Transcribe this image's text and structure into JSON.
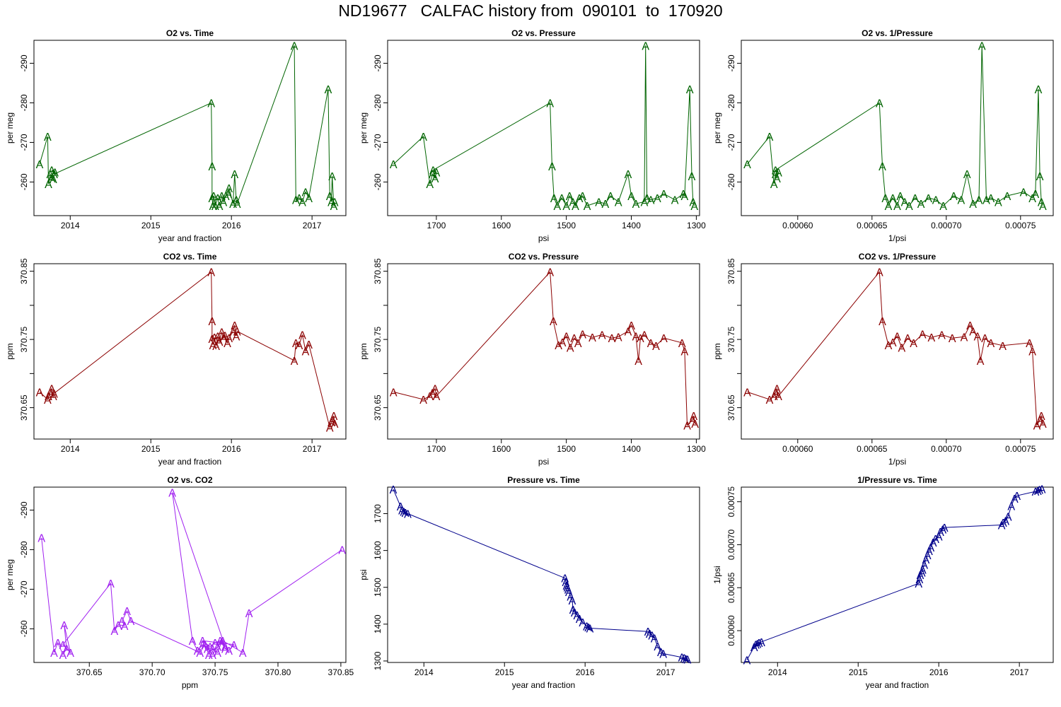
{
  "page_title": "ND19677   CALFAC history from  090101  to  170920",
  "colors": {
    "o2": "#006400",
    "co2": "#8b0000",
    "o2co2": "#a020f0",
    "pressure": "#00008b"
  },
  "chart_data": [
    {
      "type": "line",
      "marker": "A",
      "color": "#006400",
      "title": "O2 vs. Time",
      "xlabel": "year and fraction",
      "ylabel": "per meg",
      "xlim": [
        2013.55,
        2017.42
      ],
      "ylim": [
        -295.8,
        -251.5
      ],
      "y_reversed": true,
      "xticks": [
        2014,
        2015,
        2016,
        2017
      ],
      "xtick_labels": [
        "2014",
        "2015",
        "2016",
        "2017"
      ],
      "yticks": [
        -260,
        -270,
        -280,
        -290
      ],
      "ytick_labels": [
        "-260",
        "-270",
        "-280",
        "-290"
      ],
      "x": [
        2013.62,
        2013.72,
        2013.73,
        2013.75,
        2013.77,
        2013.79,
        2013.81,
        2013.77,
        2013.8,
        2015.75,
        2015.76,
        2015.76,
        2015.77,
        2015.78,
        2015.8,
        2015.83,
        2015.85,
        2015.88,
        2015.9,
        2015.93,
        2015.96,
        2015.97,
        2016.02,
        2016.04,
        2016.06,
        2016.07,
        2016.78,
        2016.8,
        2016.84,
        2016.88,
        2016.92,
        2016.96,
        2017.2,
        2017.22,
        2017.24,
        2017.25,
        2017.27,
        2017.28
      ],
      "y": [
        -264.5,
        -271.5,
        -259.5,
        -262.0,
        -261.0,
        -260.8,
        -262.5,
        -263.0,
        -262.0,
        -280.0,
        -264.0,
        -256.0,
        -254.0,
        -256.5,
        -254.0,
        -256.0,
        -254.0,
        -256.5,
        -255.0,
        -256.5,
        -257.0,
        -258.5,
        -254.5,
        -262.0,
        -255.5,
        -254.5,
        -294.5,
        -255.5,
        -256.0,
        -255.0,
        -257.5,
        -256.0,
        -283.5,
        -256.5,
        -255.0,
        -261.5,
        -254.0,
        -255.0
      ]
    },
    {
      "type": "line",
      "marker": "A",
      "color": "#006400",
      "title": "O2 vs. Pressure",
      "xlabel": "psi",
      "ylabel": "per meg",
      "xlim": [
        1775,
        1295
      ],
      "ylim": [
        -295.8,
        -251.5
      ],
      "y_reversed": true,
      "xticks": [
        1700,
        1600,
        1500,
        1400,
        1300
      ],
      "xtick_labels": [
        "1700",
        "1600",
        "1500",
        "1400",
        "1300"
      ],
      "yticks": [
        -260,
        -270,
        -280,
        -290
      ],
      "ytick_labels": [
        "-260",
        "-270",
        "-280",
        "-290"
      ],
      "x": [
        1766,
        1720,
        1710,
        1706,
        1702,
        1700,
        1705,
        1525,
        1522,
        1519,
        1514,
        1507,
        1500,
        1495,
        1490,
        1486,
        1480,
        1475,
        1468,
        1450,
        1440,
        1432,
        1420,
        1405,
        1400,
        1393,
        1380,
        1378,
        1376,
        1370,
        1360,
        1350,
        1333,
        1320,
        1318,
        1310,
        1307,
        1305,
        1303
      ],
      "y": [
        -264.5,
        -271.5,
        -259.5,
        -262.0,
        -261.0,
        -262.5,
        -263.0,
        -280.0,
        -264.0,
        -256.0,
        -254.0,
        -256.0,
        -254.0,
        -256.5,
        -255.0,
        -254.0,
        -256.0,
        -256.5,
        -254.0,
        -255.0,
        -254.5,
        -256.5,
        -255.0,
        -262.0,
        -256.5,
        -254.5,
        -255.0,
        -294.5,
        -256.0,
        -255.5,
        -256.0,
        -257.0,
        -255.5,
        -257.0,
        -256.5,
        -283.5,
        -261.5,
        -255.0,
        -254.0
      ]
    },
    {
      "type": "line",
      "marker": "A",
      "color": "#006400",
      "title": "O2 vs. 1/Pressure",
      "xlabel": "1/psi",
      "ylabel": "per meg",
      "xlim": [
        0.000562,
        0.000772
      ],
      "ylim": [
        -295.8,
        -251.5
      ],
      "y_reversed": true,
      "xticks": [
        0.0006,
        0.00065,
        0.0007,
        0.00075
      ],
      "xtick_labels": [
        "0.00060",
        "0.00065",
        "0.00070",
        "0.00075"
      ],
      "yticks": [
        -260,
        -270,
        -280,
        -290
      ],
      "ytick_labels": [
        "-260",
        "-270",
        "-280",
        "-290"
      ],
      "x": [
        0.000566,
        0.000581,
        0.000584,
        0.000585,
        0.000586,
        0.000587,
        0.000585,
        0.000655,
        0.000657,
        0.000659,
        0.000661,
        0.000664,
        0.000667,
        0.000669,
        0.000672,
        0.000675,
        0.000679,
        0.000683,
        0.000688,
        0.000693,
        0.000698,
        0.000705,
        0.00071,
        0.000714,
        0.000718,
        0.000722,
        0.000724,
        0.000727,
        0.00073,
        0.000735,
        0.000741,
        0.000752,
        0.000758,
        0.00076,
        0.000762,
        0.000763,
        0.000764,
        0.000765
      ],
      "y": [
        -264.5,
        -271.5,
        -259.5,
        -262.0,
        -261.0,
        -262.5,
        -263.0,
        -280.0,
        -264.0,
        -256.0,
        -254.0,
        -256.0,
        -254.0,
        -256.5,
        -255.0,
        -254.0,
        -256.0,
        -254.5,
        -256.0,
        -255.5,
        -254.0,
        -256.5,
        -255.5,
        -262.0,
        -254.5,
        -255.5,
        -294.5,
        -255.5,
        -256.0,
        -255.0,
        -256.5,
        -257.5,
        -256.0,
        -257.0,
        -283.5,
        -261.5,
        -255.0,
        -254.0
      ]
    },
    {
      "type": "line",
      "marker": "A",
      "color": "#8b0000",
      "title": "CO2 vs. Time",
      "xlabel": "year and fraction",
      "ylabel": "ppm",
      "xlim": [
        2013.55,
        2017.42
      ],
      "ylim": [
        370.604,
        370.861
      ],
      "yticks": [
        370.65,
        370.7,
        370.75,
        370.8,
        370.85
      ],
      "ytick_labels": [
        "370.65",
        "",
        "370.75",
        "",
        "370.85"
      ],
      "xticks": [
        2014,
        2015,
        2016,
        2017
      ],
      "xtick_labels": [
        "2014",
        "2015",
        "2016",
        "2017"
      ],
      "x": [
        2013.62,
        2013.72,
        2013.73,
        2013.75,
        2013.77,
        2013.79,
        2013.8,
        2015.75,
        2015.76,
        2015.76,
        2015.77,
        2015.79,
        2015.81,
        2015.83,
        2015.85,
        2015.88,
        2015.9,
        2015.92,
        2015.95,
        2015.97,
        2016.02,
        2016.04,
        2016.06,
        2016.07,
        2016.78,
        2016.8,
        2016.84,
        2016.88,
        2016.92,
        2016.96,
        2017.22,
        2017.24,
        2017.25,
        2017.27,
        2017.28
      ],
      "y": [
        370.673,
        370.662,
        370.667,
        370.672,
        370.678,
        370.667,
        370.671,
        370.849,
        370.777,
        370.751,
        370.742,
        370.753,
        370.741,
        370.755,
        370.747,
        370.761,
        370.752,
        370.756,
        370.745,
        370.752,
        370.762,
        370.771,
        370.755,
        370.762,
        370.719,
        370.745,
        370.742,
        370.757,
        370.733,
        370.743,
        370.621,
        370.629,
        370.632,
        370.638,
        370.627
      ]
    },
    {
      "type": "line",
      "marker": "A",
      "color": "#8b0000",
      "title": "CO2 vs. Pressure",
      "xlabel": "psi",
      "ylabel": "ppm",
      "xlim": [
        1775,
        1295
      ],
      "ylim": [
        370.604,
        370.861
      ],
      "xticks": [
        1700,
        1600,
        1500,
        1400,
        1300
      ],
      "xtick_labels": [
        "1700",
        "1600",
        "1500",
        "1400",
        "1300"
      ],
      "yticks": [
        370.65,
        370.7,
        370.75,
        370.8,
        370.85
      ],
      "ytick_labels": [
        "370.65",
        "",
        "370.75",
        "",
        "370.85"
      ],
      "x": [
        1766,
        1720,
        1710,
        1706,
        1702,
        1700,
        1525,
        1520,
        1512,
        1506,
        1500,
        1494,
        1488,
        1482,
        1475,
        1460,
        1445,
        1430,
        1420,
        1405,
        1400,
        1393,
        1389,
        1386,
        1380,
        1370,
        1362,
        1350,
        1322,
        1318,
        1314,
        1306,
        1304,
        1302
      ],
      "y": [
        370.673,
        370.662,
        370.667,
        370.672,
        370.678,
        370.667,
        370.849,
        370.777,
        370.742,
        370.746,
        370.755,
        370.738,
        370.752,
        370.745,
        370.758,
        370.753,
        370.757,
        370.752,
        370.754,
        370.762,
        370.771,
        370.755,
        370.719,
        370.752,
        370.757,
        370.745,
        370.741,
        370.752,
        370.745,
        370.733,
        370.624,
        370.632,
        370.638,
        370.627
      ]
    },
    {
      "type": "line",
      "marker": "A",
      "color": "#8b0000",
      "title": "CO2 vs. 1/Pressure",
      "xlabel": "1/psi",
      "ylabel": "ppm",
      "xlim": [
        0.000562,
        0.000772
      ],
      "ylim": [
        370.604,
        370.861
      ],
      "xticks": [
        0.0006,
        0.00065,
        0.0007,
        0.00075
      ],
      "xtick_labels": [
        "0.00060",
        "0.00065",
        "0.00070",
        "0.00075"
      ],
      "yticks": [
        370.65,
        370.7,
        370.75,
        370.8,
        370.85
      ],
      "ytick_labels": [
        "370.65",
        "",
        "370.75",
        "",
        "370.85"
      ],
      "x": [
        0.000566,
        0.000581,
        0.000584,
        0.000585,
        0.000586,
        0.000587,
        0.000655,
        0.000657,
        0.000661,
        0.000664,
        0.000667,
        0.00067,
        0.000674,
        0.000678,
        0.000684,
        0.00069,
        0.000697,
        0.000704,
        0.000712,
        0.000716,
        0.000718,
        0.000721,
        0.000723,
        0.000726,
        0.00073,
        0.000738,
        0.000756,
        0.000758,
        0.000761,
        0.000763,
        0.000764,
        0.000765
      ],
      "y": [
        370.673,
        370.662,
        370.667,
        370.672,
        370.678,
        370.667,
        370.849,
        370.777,
        370.742,
        370.746,
        370.755,
        370.738,
        370.752,
        370.745,
        370.758,
        370.753,
        370.757,
        370.752,
        370.754,
        370.771,
        370.762,
        370.755,
        370.719,
        370.752,
        370.745,
        370.741,
        370.745,
        370.733,
        370.624,
        370.632,
        370.638,
        370.627
      ]
    },
    {
      "type": "line",
      "marker": "A",
      "color": "#a020f0",
      "title": "O2 vs. CO2",
      "xlabel": "ppm",
      "ylabel": "per meg",
      "xlim": [
        370.606,
        370.854
      ],
      "ylim": [
        -295.8,
        -251.5
      ],
      "y_reversed": true,
      "xticks": [
        370.65,
        370.7,
        370.75,
        370.8,
        370.85
      ],
      "xtick_labels": [
        "370.65",
        "370.70",
        "370.75",
        "370.80",
        "370.85"
      ],
      "yticks": [
        -260,
        -270,
        -280,
        -290
      ],
      "ytick_labels": [
        "-260",
        "-270",
        "-280",
        "-290"
      ],
      "x": [
        370.612,
        370.622,
        370.625,
        370.629,
        370.632,
        370.63,
        370.635,
        370.629,
        370.667,
        370.67,
        370.673,
        370.678,
        370.676,
        370.68,
        370.683,
        370.738,
        370.742,
        370.745,
        370.748,
        370.752,
        370.755,
        370.758,
        370.761,
        370.765,
        370.74,
        370.746,
        370.75,
        370.754,
        370.758,
        370.716,
        370.732,
        370.736,
        370.74,
        370.744,
        370.748,
        370.752,
        370.756,
        370.772,
        370.777,
        370.851
      ],
      "y": [
        -283.0,
        -254.0,
        -256.5,
        -253.5,
        -255.0,
        -261.0,
        -254.0,
        -256.0,
        -271.5,
        -259.5,
        -261.0,
        -260.8,
        -262.0,
        -264.5,
        -262.0,
        -254.0,
        -256.0,
        -253.5,
        -255.0,
        -254.0,
        -256.5,
        -255.0,
        -254.5,
        -256.0,
        -257.0,
        -255.5,
        -256.5,
        -257.0,
        -255.5,
        -294.5,
        -257.0,
        -254.5,
        -256.0,
        -255.0,
        -253.5,
        -255.5,
        -257.0,
        -254.0,
        -264.0,
        -280.0
      ]
    },
    {
      "type": "line",
      "marker": "A",
      "color": "#00008b",
      "title": "Pressure vs. Time",
      "xlabel": "year and fraction",
      "ylabel": "psi",
      "xlim": [
        2013.55,
        2017.42
      ],
      "ylim": [
        1296,
        1772
      ],
      "xticks": [
        2014,
        2015,
        2016,
        2017
      ],
      "xtick_labels": [
        "2014",
        "2015",
        "2016",
        "2017"
      ],
      "yticks": [
        1300,
        1400,
        1500,
        1600,
        1700
      ],
      "ytick_labels": [
        "1300",
        "1400",
        "1500",
        "1600",
        "1700"
      ],
      "x": [
        2013.62,
        2013.71,
        2013.73,
        2013.75,
        2013.77,
        2013.8,
        2015.75,
        2015.76,
        2015.77,
        2015.78,
        2015.79,
        2015.8,
        2015.82,
        2015.84,
        2015.85,
        2015.87,
        2015.9,
        2015.93,
        2015.97,
        2016.02,
        2016.04,
        2016.06,
        2016.78,
        2016.8,
        2016.83,
        2016.86,
        2016.9,
        2016.94,
        2016.97,
        2017.2,
        2017.23,
        2017.25,
        2017.27
      ],
      "y": [
        1766,
        1720,
        1710,
        1706,
        1703,
        1700,
        1525,
        1515,
        1505,
        1500,
        1495,
        1488,
        1475,
        1465,
        1440,
        1432,
        1425,
        1415,
        1405,
        1395,
        1392,
        1389,
        1380,
        1375,
        1370,
        1362,
        1340,
        1325,
        1320,
        1310,
        1308,
        1306,
        1305
      ]
    },
    {
      "type": "line",
      "marker": "A",
      "color": "#00008b",
      "title": "1/Pressure vs. Time",
      "xlabel": "year and fraction",
      "ylabel": "1/psi",
      "xlim": [
        2013.55,
        2017.42
      ],
      "ylim": [
        0.000563,
        0.000767
      ],
      "xticks": [
        2014,
        2015,
        2016,
        2017
      ],
      "xtick_labels": [
        "2014",
        "2015",
        "2016",
        "2017"
      ],
      "yticks": [
        0.0006,
        0.00065,
        0.0007,
        0.00075
      ],
      "ytick_labels": [
        "0.00060",
        "0.00065",
        "0.00070",
        "0.00075"
      ],
      "x": [
        2013.62,
        2013.71,
        2013.73,
        2013.75,
        2013.77,
        2013.8,
        2015.75,
        2015.76,
        2015.77,
        2015.79,
        2015.8,
        2015.82,
        2015.84,
        2015.86,
        2015.88,
        2015.9,
        2015.93,
        2015.96,
        2016.0,
        2016.02,
        2016.05,
        2016.07,
        2016.78,
        2016.8,
        2016.83,
        2016.86,
        2016.9,
        2016.94,
        2016.97,
        2017.2,
        2017.23,
        2017.25,
        2017.28
      ],
      "y": [
        0.000566,
        0.000581,
        0.000584,
        0.000585,
        0.000586,
        0.000587,
        0.000655,
        0.00066,
        0.000665,
        0.000668,
        0.000671,
        0.000677,
        0.000683,
        0.000688,
        0.000693,
        0.000697,
        0.000703,
        0.000707,
        0.00071,
        0.000715,
        0.000718,
        0.00072,
        0.000723,
        0.000726,
        0.000728,
        0.000733,
        0.000745,
        0.000754,
        0.000757,
        0.000762,
        0.000763,
        0.000764,
        0.000765
      ]
    }
  ]
}
